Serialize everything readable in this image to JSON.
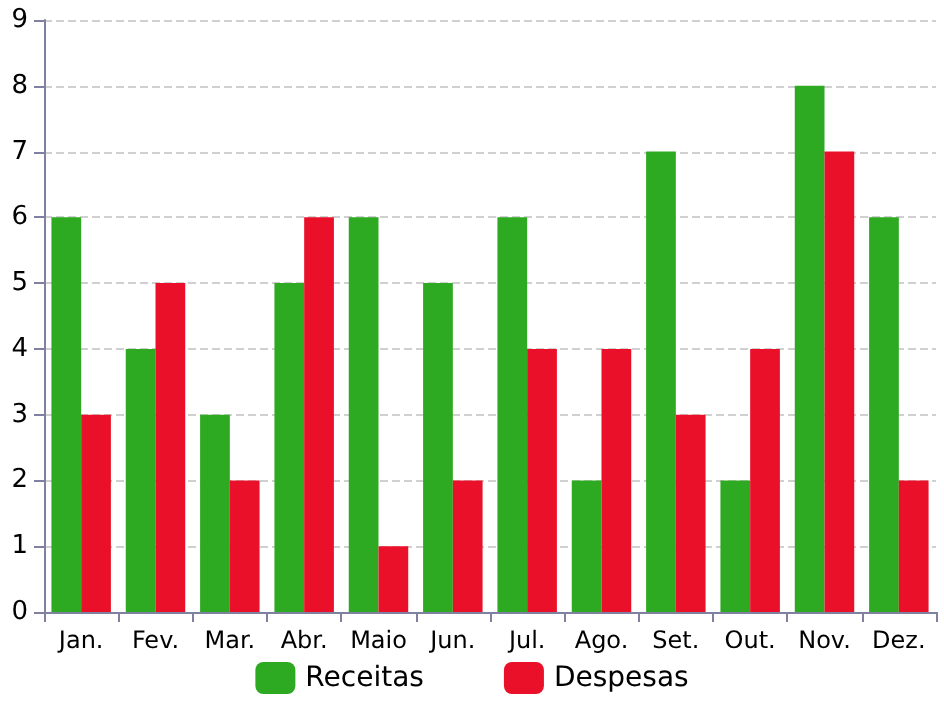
{
  "chart_data": {
    "type": "bar",
    "categories": [
      "Jan.",
      "Fev.",
      "Mar.",
      "Abr.",
      "Maio",
      "Jun.",
      "Jul.",
      "Ago.",
      "Set.",
      "Out.",
      "Nov.",
      "Dez."
    ],
    "series": [
      {
        "name": "Receitas",
        "color": "#2eaa22",
        "values": [
          6,
          4,
          3,
          5,
          6,
          5,
          6,
          2,
          7,
          2,
          8,
          6
        ]
      },
      {
        "name": "Despesas",
        "color": "#ea1029",
        "values": [
          3,
          5,
          2,
          6,
          1,
          2,
          4,
          4,
          3,
          4,
          7,
          2
        ]
      }
    ],
    "ylim": [
      0,
      9
    ],
    "yticks": [
      0,
      1,
      2,
      3,
      4,
      5,
      6,
      7,
      8,
      9
    ],
    "grid": "y",
    "legend": "bottom"
  }
}
